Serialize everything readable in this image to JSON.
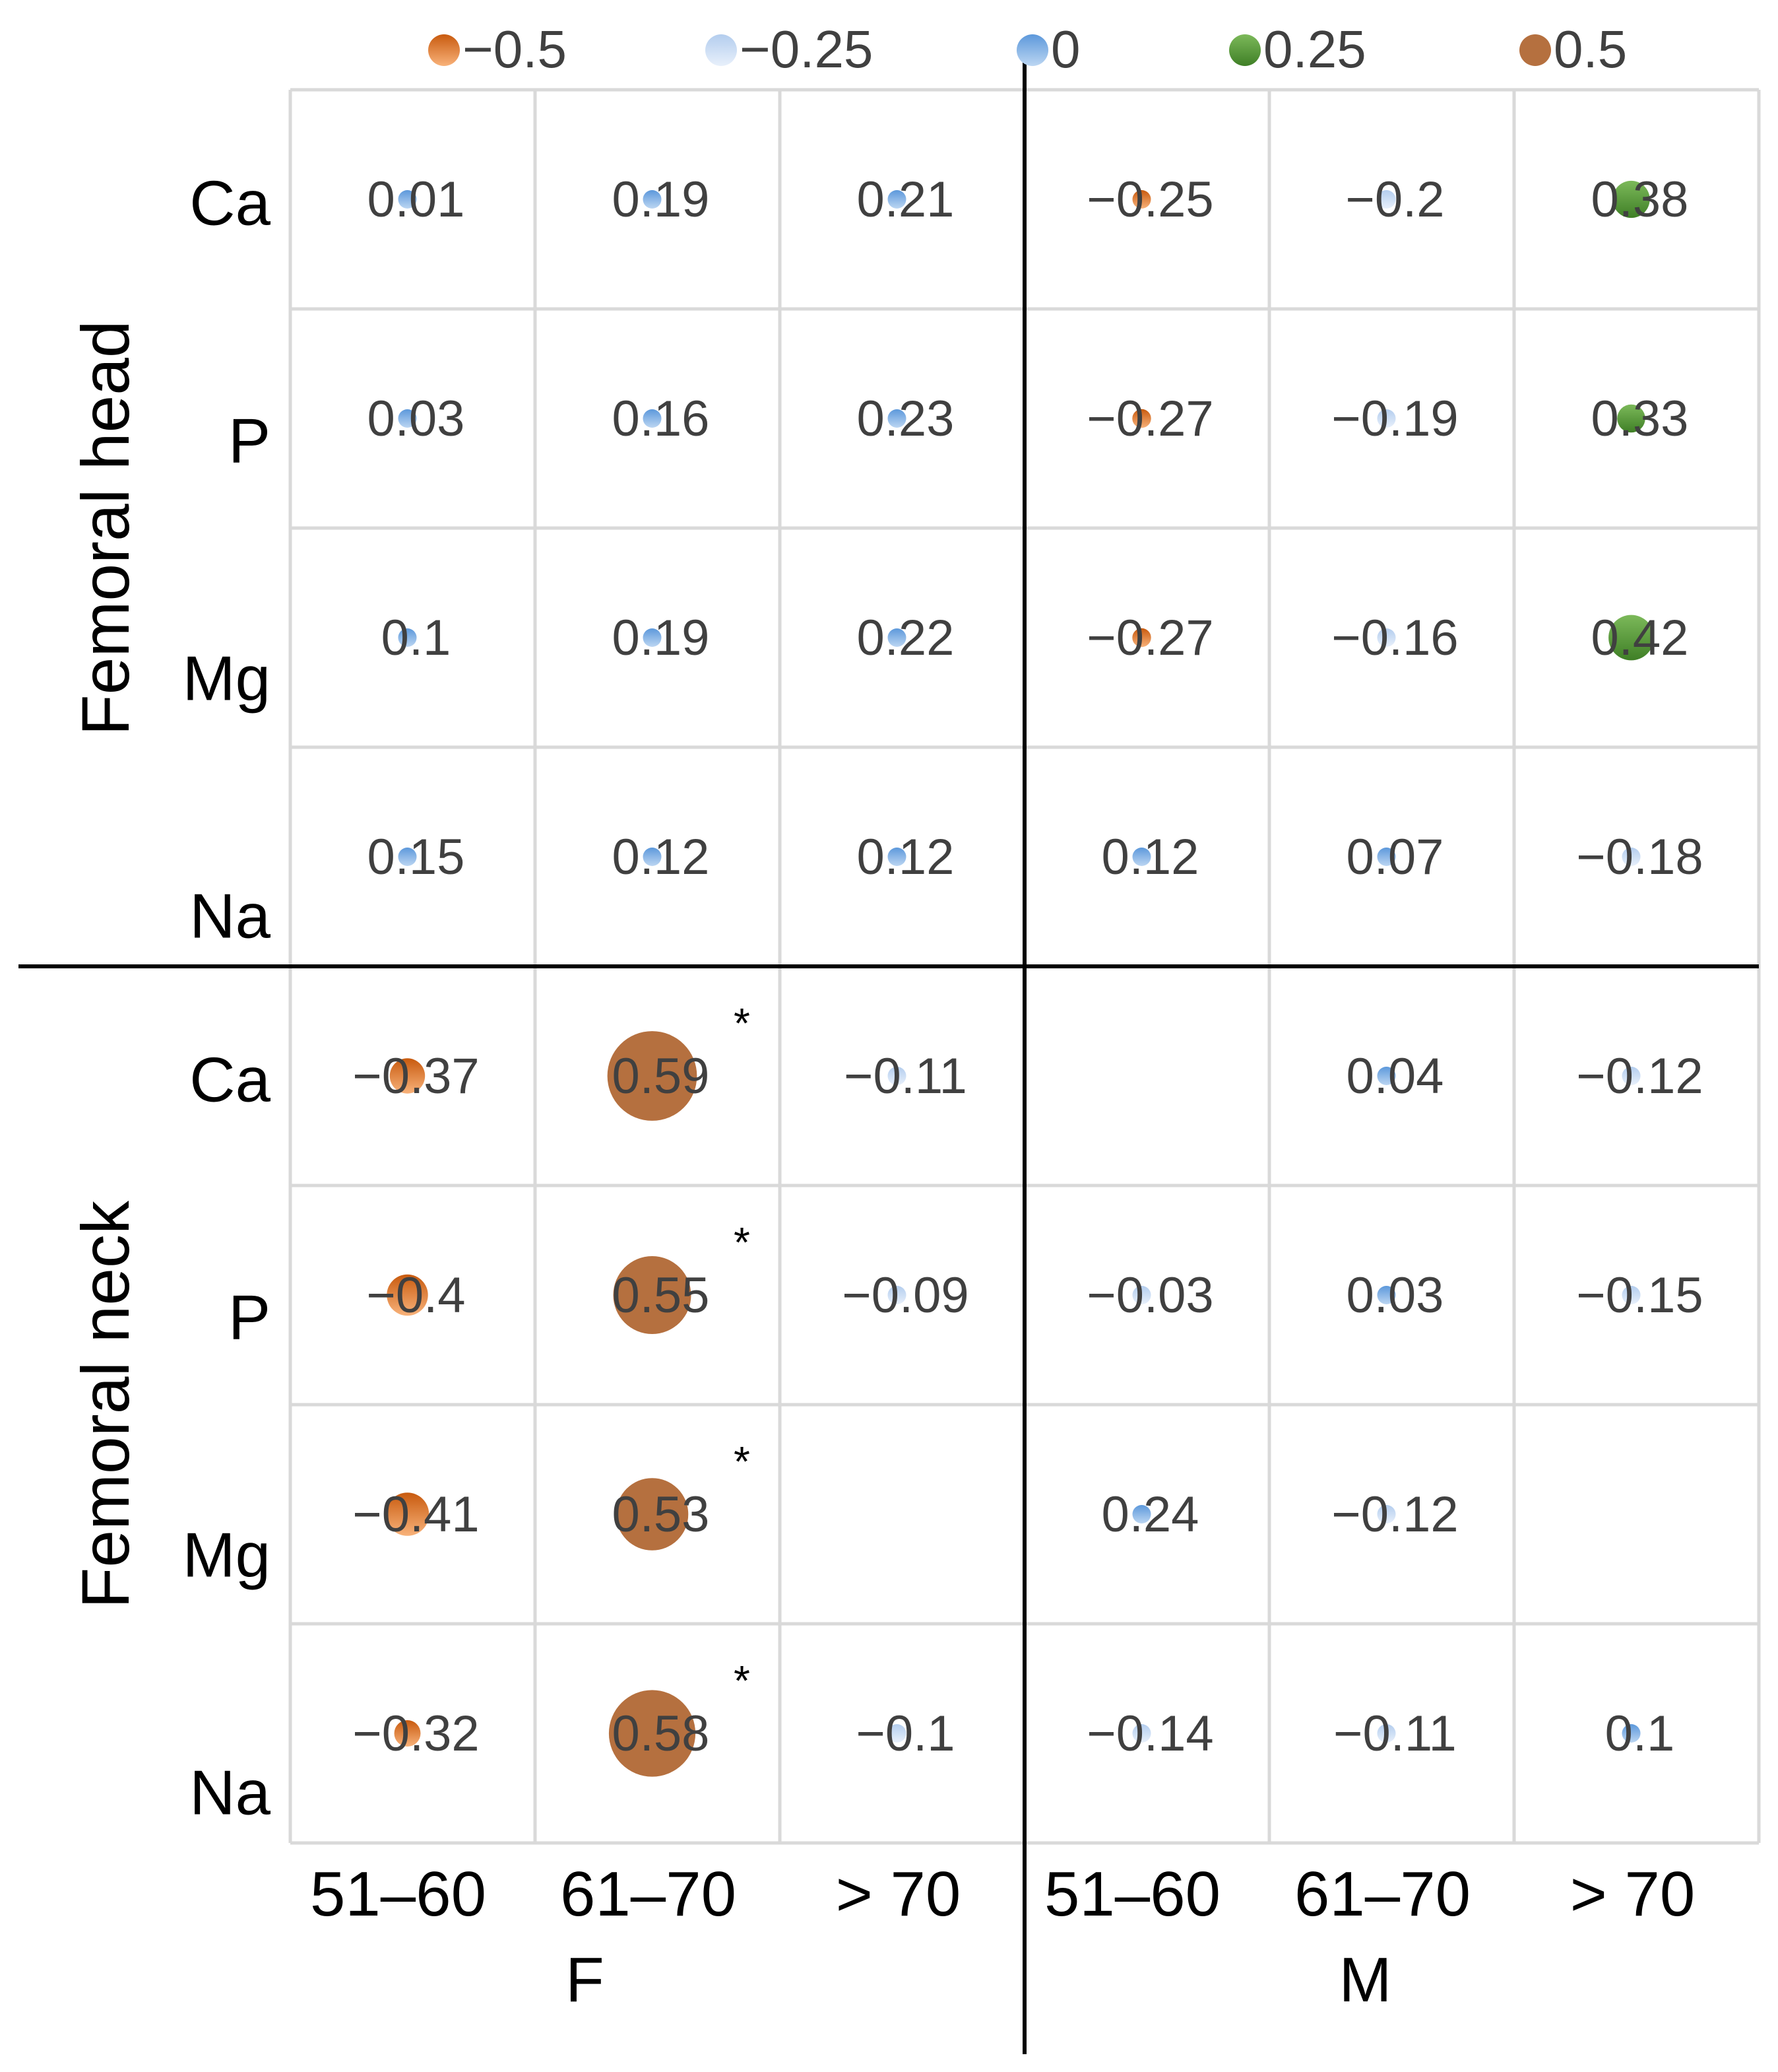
{
  "chart_data": {
    "type": "bubble-matrix",
    "legend": {
      "placement": "top",
      "entries": [
        {
          "label": "−0.5",
          "color": "#e2702a"
        },
        {
          "label": "−0.25",
          "color": "#c9dcf3"
        },
        {
          "label": "0",
          "color": "#7fb0e4"
        },
        {
          "label": "0.25",
          "color": "#5e9e3c"
        },
        {
          "label": "0.5",
          "color": "#b8744a"
        }
      ]
    },
    "row_groups": [
      {
        "name": "Femoral head",
        "rows": [
          "Ca",
          "P",
          "Mg",
          "Na"
        ]
      },
      {
        "name": "Femoral neck",
        "rows": [
          "Ca",
          "P",
          "Mg",
          "Na"
        ]
      }
    ],
    "column_groups": [
      {
        "name": "F",
        "columns": [
          "51–60",
          "61–70",
          "> 70"
        ]
      },
      {
        "name": "M",
        "columns": [
          "51–60",
          "61–70",
          "> 70"
        ]
      }
    ],
    "cells": [
      [
        {
          "v": 0.01,
          "label": "0.01"
        },
        {
          "v": 0.19,
          "label": "0.19"
        },
        {
          "v": 0.21,
          "label": "0.21"
        },
        {
          "v": -0.25,
          "label": "−0.25"
        },
        {
          "v": -0.2,
          "label": "−0.2"
        },
        {
          "v": 0.38,
          "label": "0.38"
        }
      ],
      [
        {
          "v": 0.03,
          "label": "0.03"
        },
        {
          "v": 0.16,
          "label": "0.16"
        },
        {
          "v": 0.23,
          "label": "0.23"
        },
        {
          "v": -0.27,
          "label": "−0.27"
        },
        {
          "v": -0.19,
          "label": "−0.19"
        },
        {
          "v": 0.33,
          "label": "0.33"
        }
      ],
      [
        {
          "v": 0.1,
          "label": "0.1"
        },
        {
          "v": 0.19,
          "label": "0.19"
        },
        {
          "v": 0.22,
          "label": "0.22"
        },
        {
          "v": -0.27,
          "label": "−0.27"
        },
        {
          "v": -0.16,
          "label": "−0.16"
        },
        {
          "v": 0.42,
          "label": "0.42"
        }
      ],
      [
        {
          "v": 0.15,
          "label": "0.15"
        },
        {
          "v": 0.12,
          "label": "0.12"
        },
        {
          "v": 0.12,
          "label": "0.12"
        },
        {
          "v": 0.12,
          "label": "0.12"
        },
        {
          "v": 0.07,
          "label": "0.07"
        },
        {
          "v": -0.18,
          "label": "−0.18"
        }
      ],
      [
        {
          "v": -0.37,
          "label": "−0.37"
        },
        {
          "v": 0.59,
          "label": "0.59",
          "star": "*"
        },
        {
          "v": -0.11,
          "label": "−0.11"
        },
        null,
        {
          "v": 0.04,
          "label": "0.04"
        },
        {
          "v": -0.12,
          "label": "−0.12"
        }
      ],
      [
        {
          "v": -0.4,
          "label": "−0.4"
        },
        {
          "v": 0.55,
          "label": "0.55",
          "star": "*"
        },
        {
          "v": -0.09,
          "label": "−0.09"
        },
        {
          "v": -0.03,
          "label": "−0.03"
        },
        {
          "v": 0.03,
          "label": "0.03"
        },
        {
          "v": -0.15,
          "label": "−0.15"
        }
      ],
      [
        {
          "v": -0.41,
          "label": "−0.41"
        },
        {
          "v": 0.53,
          "label": "0.53",
          "star": "*"
        },
        null,
        {
          "v": 0.24,
          "label": "0.24"
        },
        {
          "v": -0.12,
          "label": "−0.12"
        },
        null
      ],
      [
        {
          "v": -0.32,
          "label": "−0.32"
        },
        {
          "v": 0.58,
          "label": "0.58",
          "star": "*"
        },
        {
          "v": -0.1,
          "label": "−0.1"
        },
        {
          "v": -0.14,
          "label": "−0.14"
        },
        {
          "v": -0.11,
          "label": "−0.11"
        },
        {
          "v": 0.1,
          "label": "0.1"
        }
      ]
    ]
  }
}
